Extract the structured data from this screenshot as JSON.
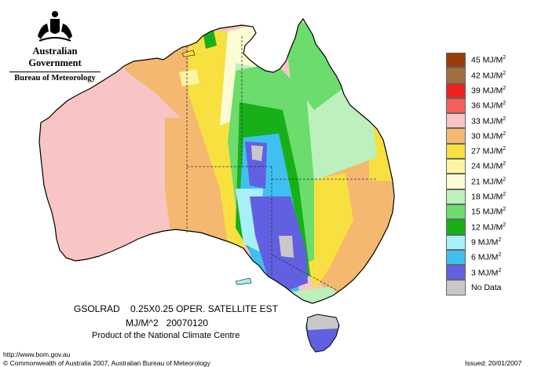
{
  "header": {
    "government": "Australian Government",
    "bureau": "Bureau of Meteorology",
    "crest_icon": "coat-of-arms-icon"
  },
  "legend": {
    "items": [
      {
        "value": "45",
        "unit": "MJ/M",
        "sup": "2",
        "color": "#9c3c0a"
      },
      {
        "value": "42",
        "unit": "MJ/M",
        "sup": "2",
        "color": "#a07040"
      },
      {
        "value": "39",
        "unit": "MJ/M",
        "sup": "2",
        "color": "#ee2020"
      },
      {
        "value": "36",
        "unit": "MJ/M",
        "sup": "2",
        "color": "#f4605a"
      },
      {
        "value": "33",
        "unit": "MJ/M",
        "sup": "2",
        "color": "#f8c4c4"
      },
      {
        "value": "30",
        "unit": "MJ/M",
        "sup": "2",
        "color": "#f4b870"
      },
      {
        "value": "27",
        "unit": "MJ/M",
        "sup": "2",
        "color": "#f8e040"
      },
      {
        "value": "24",
        "unit": "MJ/M",
        "sup": "2",
        "color": "#fcf4a0"
      },
      {
        "value": "21",
        "unit": "MJ/M",
        "sup": "2",
        "color": "#fcfcd4"
      },
      {
        "value": "18",
        "unit": "MJ/M",
        "sup": "2",
        "color": "#bcf0bc"
      },
      {
        "value": "15",
        "unit": "MJ/M",
        "sup": "2",
        "color": "#6cdc6c"
      },
      {
        "value": "12",
        "unit": "MJ/M",
        "sup": "2",
        "color": "#18b018"
      },
      {
        "value": "9",
        "unit": "MJ/M",
        "sup": "2",
        "color": "#a8f0f8"
      },
      {
        "value": "6",
        "unit": "MJ/M",
        "sup": "2",
        "color": "#40c0f0"
      },
      {
        "value": "3",
        "unit": "MJ/M",
        "sup": "2",
        "color": "#6060e0"
      },
      {
        "value": "No Data",
        "unit": "",
        "sup": "",
        "color": "#c8c8c8"
      }
    ]
  },
  "caption": {
    "line1_product": "GSOLRAD",
    "line1_desc": "0.25X0.25 OPER. SATELLITE EST",
    "line2_units": "MJ/M^2",
    "line2_date": "20070120",
    "line3": "Product of the National Climate Centre"
  },
  "footer": {
    "url": "http://www.bom.gov.au",
    "copyright": "© Commonwealth of Australia 2007, Australian Bureau of Meteorology",
    "issued": "Issued: 20/01/2007"
  }
}
